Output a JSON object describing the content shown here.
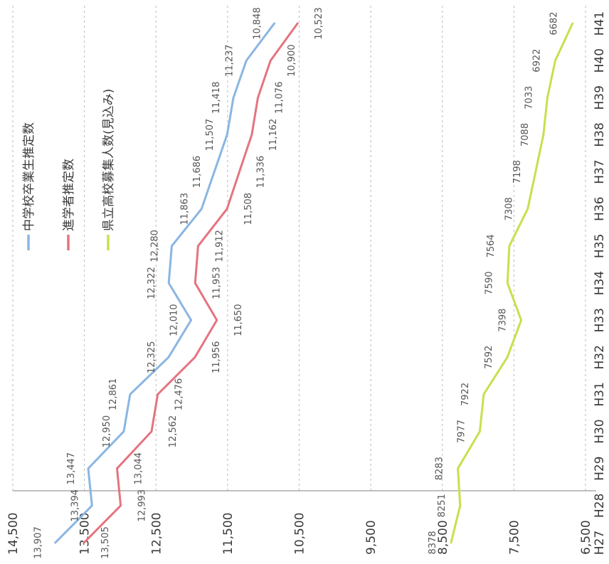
{
  "chart_data": {
    "type": "line",
    "orientation": "rotated-90-clockwise",
    "categories": [
      "H27",
      "H28",
      "H29",
      "H30",
      "H31",
      "H32",
      "H33",
      "H34",
      "H35",
      "H36",
      "H37",
      "H38",
      "H39",
      "H40",
      "H41"
    ],
    "ylim": [
      6500,
      14500
    ],
    "y_ticks": [
      "14,500",
      "13,500",
      "12,500",
      "11,500",
      "10,500",
      "9,500",
      "8,500",
      "7,500",
      "6,500"
    ],
    "y_tick_values": [
      14500,
      13500,
      12500,
      11500,
      10500,
      9500,
      8500,
      7500,
      6500
    ],
    "grid": true,
    "legend_position": "top",
    "series": [
      {
        "name": "中学校卒業生推定数",
        "color": "#8ab6e2",
        "values": [
          13907,
          13394,
          13447,
          12950,
          12861,
          12325,
          12010,
          12322,
          12280,
          11863,
          11686,
          11507,
          11418,
          11237,
          10848
        ],
        "labels": [
          "13,907",
          "13,394",
          "13,447",
          "12,950",
          "12,861",
          "12,325",
          "12,010",
          "12,322",
          "12,280",
          "11,863",
          "11,686",
          "11,507",
          "11,418",
          "11,237",
          "10,848"
        ]
      },
      {
        "name": "進学者推定数",
        "color": "#e4747f",
        "values": [
          13505,
          12993,
          13044,
          12562,
          12476,
          11956,
          11650,
          11953,
          11912,
          11508,
          11336,
          11162,
          11076,
          10900,
          10523
        ],
        "labels": [
          "13,505",
          "12,993",
          "13,044",
          "12,562",
          "12,476",
          "11,956",
          "11,650",
          "11,953",
          "11,912",
          "11,508",
          "11,336",
          "11,162",
          "11,076",
          "10,900",
          "10,523"
        ]
      },
      {
        "name": "県立高校募集人数(見込み)",
        "color": "#c6e04d",
        "values": [
          8378,
          8251,
          8283,
          7977,
          7922,
          7592,
          7398,
          7590,
          7564,
          7308,
          7198,
          7088,
          7033,
          6922,
          6682
        ],
        "labels": [
          "8378",
          "8251",
          "8283",
          "7977",
          "7922",
          "7592",
          "7398",
          "7590",
          "7564",
          "7308",
          "7198",
          "7088",
          "7033",
          "6922",
          "6682"
        ]
      }
    ]
  }
}
